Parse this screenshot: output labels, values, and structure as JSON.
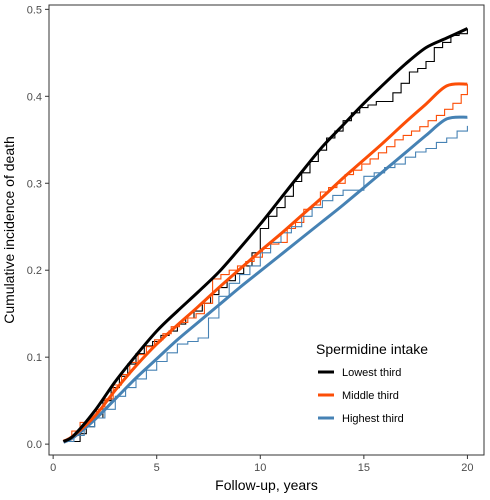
{
  "chart_data": {
    "type": "line",
    "title": "",
    "xlabel": "Follow-up, years",
    "ylabel": "Cumulative incidence of death",
    "xlim": [
      -0.2,
      20.8
    ],
    "ylim": [
      -0.0125,
      0.505
    ],
    "xticks": [
      0,
      5,
      10,
      15,
      20
    ],
    "xtick_labels": [
      "0",
      "5",
      "10",
      "15",
      "20"
    ],
    "yticks": [
      0.0,
      0.1,
      0.2,
      0.3,
      0.4,
      0.5
    ],
    "ytick_labels": [
      "0.0",
      "0.1",
      "0.2",
      "0.3",
      "0.4",
      "0.5"
    ],
    "grid": false,
    "legend": {
      "title": "Spermidine intake",
      "position": "bottom-right inside"
    },
    "series": [
      {
        "name": "Lowest third",
        "color": "#000000",
        "smooth": {
          "x": [
            0.5,
            1,
            2,
            3,
            4,
            5,
            6,
            7,
            8,
            9,
            10,
            11,
            12,
            13,
            14,
            15,
            16,
            17,
            18,
            19,
            20
          ],
          "y": [
            0.003,
            0.01,
            0.038,
            0.072,
            0.102,
            0.13,
            0.153,
            0.175,
            0.198,
            0.225,
            0.253,
            0.283,
            0.313,
            0.342,
            0.367,
            0.392,
            0.415,
            0.437,
            0.456,
            0.467,
            0.478
          ]
        },
        "step": {
          "x": [
            0.5,
            1.3,
            1.6,
            2.0,
            2.4,
            2.8,
            3.2,
            3.6,
            4.0,
            4.4,
            4.8,
            5.2,
            5.6,
            6.0,
            6.4,
            6.8,
            7.2,
            7.6,
            8.0,
            8.4,
            8.8,
            9.2,
            9.6,
            10.0,
            10.4,
            10.8,
            11.2,
            11.6,
            12.0,
            12.4,
            12.8,
            13.2,
            13.6,
            14.0,
            14.4,
            14.8,
            15.2,
            15.6,
            16.0,
            16.4,
            16.8,
            17.2,
            17.6,
            18.0,
            18.4,
            18.8,
            19.2,
            19.6,
            20.0
          ],
          "y": [
            0.003,
            0.012,
            0.02,
            0.03,
            0.05,
            0.065,
            0.078,
            0.092,
            0.104,
            0.113,
            0.118,
            0.125,
            0.13,
            0.138,
            0.145,
            0.153,
            0.162,
            0.172,
            0.18,
            0.188,
            0.196,
            0.205,
            0.22,
            0.248,
            0.262,
            0.272,
            0.285,
            0.302,
            0.312,
            0.325,
            0.338,
            0.352,
            0.36,
            0.372,
            0.381,
            0.387,
            0.39,
            0.394,
            0.394,
            0.404,
            0.415,
            0.428,
            0.432,
            0.44,
            0.456,
            0.462,
            0.47,
            0.472,
            0.478
          ]
        }
      },
      {
        "name": "Middle third",
        "color": "#fc4e07",
        "smooth": {
          "x": [
            0.5,
            1,
            2,
            3,
            4,
            5,
            6,
            7,
            8,
            9,
            10,
            11,
            12,
            13,
            14,
            15,
            16,
            17,
            18,
            19,
            20
          ],
          "y": [
            0.003,
            0.01,
            0.032,
            0.062,
            0.09,
            0.115,
            0.137,
            0.158,
            0.18,
            0.201,
            0.222,
            0.242,
            0.263,
            0.284,
            0.306,
            0.327,
            0.348,
            0.37,
            0.391,
            0.412,
            0.414
          ]
        },
        "step": {
          "x": [
            0.5,
            0.9,
            1.3,
            1.7,
            2.1,
            2.5,
            2.9,
            3.3,
            3.7,
            4.1,
            4.5,
            4.9,
            5.3,
            5.7,
            6.1,
            6.5,
            6.9,
            7.3,
            7.7,
            8.1,
            8.5,
            8.9,
            9.3,
            9.7,
            10.1,
            10.5,
            10.9,
            11.3,
            11.7,
            12.1,
            12.5,
            12.9,
            13.3,
            13.7,
            14.1,
            14.5,
            14.9,
            15.3,
            15.7,
            16.1,
            16.5,
            16.9,
            17.3,
            17.7,
            18.1,
            18.5,
            18.9,
            19.3,
            19.7,
            20.0
          ],
          "y": [
            0.005,
            0.015,
            0.025,
            0.03,
            0.04,
            0.052,
            0.068,
            0.08,
            0.094,
            0.103,
            0.112,
            0.12,
            0.127,
            0.135,
            0.14,
            0.145,
            0.15,
            0.162,
            0.19,
            0.195,
            0.2,
            0.205,
            0.21,
            0.215,
            0.225,
            0.23,
            0.232,
            0.248,
            0.255,
            0.27,
            0.275,
            0.29,
            0.295,
            0.3,
            0.31,
            0.315,
            0.322,
            0.328,
            0.335,
            0.342,
            0.35,
            0.355,
            0.36,
            0.365,
            0.372,
            0.378,
            0.385,
            0.392,
            0.402,
            0.414
          ]
        }
      },
      {
        "name": "Highest third",
        "color": "#4682b4",
        "smooth": {
          "x": [
            0.5,
            1,
            2,
            3,
            4,
            5,
            6,
            7,
            8,
            9,
            10,
            11,
            12,
            13,
            14,
            15,
            16,
            17,
            18,
            19,
            20
          ],
          "y": [
            0.002,
            0.008,
            0.028,
            0.052,
            0.076,
            0.098,
            0.12,
            0.14,
            0.16,
            0.18,
            0.199,
            0.218,
            0.237,
            0.256,
            0.275,
            0.295,
            0.315,
            0.335,
            0.355,
            0.374,
            0.376
          ]
        },
        "step": {
          "x": [
            0.5,
            1.0,
            1.5,
            2.0,
            2.5,
            3.0,
            3.5,
            4.0,
            4.5,
            5.0,
            5.5,
            6.0,
            6.5,
            7.0,
            7.5,
            8.0,
            8.5,
            9.0,
            9.5,
            10.0,
            10.5,
            11.0,
            11.5,
            12.0,
            12.5,
            13.0,
            13.5,
            14.0,
            14.5,
            15.0,
            15.5,
            16.0,
            16.5,
            17.0,
            17.5,
            18.0,
            18.5,
            19.0,
            19.5,
            20.0
          ],
          "y": [
            0.003,
            0.01,
            0.02,
            0.03,
            0.04,
            0.055,
            0.065,
            0.075,
            0.085,
            0.095,
            0.105,
            0.115,
            0.118,
            0.122,
            0.145,
            0.17,
            0.185,
            0.195,
            0.205,
            0.22,
            0.232,
            0.243,
            0.25,
            0.262,
            0.272,
            0.28,
            0.286,
            0.292,
            0.292,
            0.308,
            0.312,
            0.318,
            0.322,
            0.33,
            0.336,
            0.34,
            0.347,
            0.352,
            0.36,
            0.366
          ]
        }
      }
    ]
  }
}
